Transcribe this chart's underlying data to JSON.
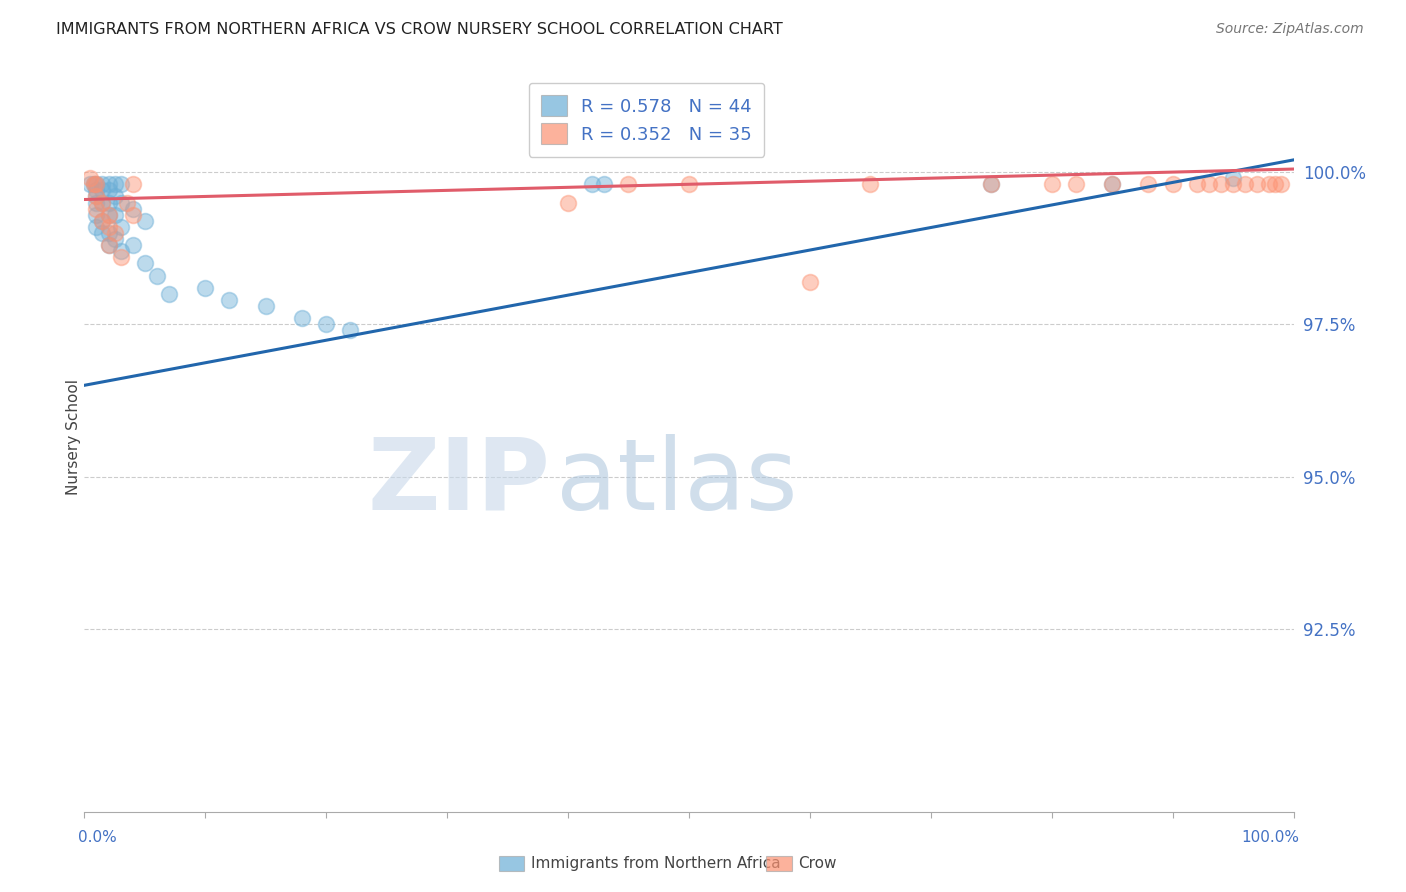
{
  "title": "IMMIGRANTS FROM NORTHERN AFRICA VS CROW NURSERY SCHOOL CORRELATION CHART",
  "source": "Source: ZipAtlas.com",
  "ylabel": "Nursery School",
  "yticks": [
    100.0,
    97.5,
    95.0,
    92.5
  ],
  "ytick_labels": [
    "100.0%",
    "97.5%",
    "95.0%",
    "92.5%"
  ],
  "xlim": [
    0.0,
    1.0
  ],
  "ylim": [
    89.5,
    101.8
  ],
  "legend_r1": "R = 0.578   N = 44",
  "legend_r2": "R = 0.352   N = 35",
  "legend_label_bottom_left": "Immigrants from Northern Africa",
  "legend_label_bottom_right": "Crow",
  "blue_scatter_x": [
    0.005,
    0.008,
    0.01,
    0.01,
    0.01,
    0.01,
    0.01,
    0.01,
    0.015,
    0.015,
    0.015,
    0.015,
    0.015,
    0.02,
    0.02,
    0.02,
    0.02,
    0.02,
    0.02,
    0.025,
    0.025,
    0.025,
    0.025,
    0.03,
    0.03,
    0.03,
    0.03,
    0.04,
    0.04,
    0.05,
    0.05,
    0.06,
    0.07,
    0.1,
    0.12,
    0.15,
    0.18,
    0.2,
    0.22,
    0.42,
    0.43,
    0.75,
    0.85,
    0.95
  ],
  "blue_scatter_y": [
    99.8,
    99.8,
    99.8,
    99.7,
    99.6,
    99.5,
    99.3,
    99.1,
    99.8,
    99.7,
    99.5,
    99.2,
    99.0,
    99.8,
    99.7,
    99.5,
    99.3,
    99.0,
    98.8,
    99.8,
    99.6,
    99.3,
    98.9,
    99.8,
    99.5,
    99.1,
    98.7,
    99.4,
    98.8,
    99.2,
    98.5,
    98.3,
    98.0,
    98.1,
    97.9,
    97.8,
    97.6,
    97.5,
    97.4,
    99.8,
    99.8,
    99.8,
    99.8,
    99.9
  ],
  "pink_scatter_x": [
    0.005,
    0.008,
    0.01,
    0.01,
    0.01,
    0.015,
    0.015,
    0.02,
    0.02,
    0.02,
    0.025,
    0.03,
    0.035,
    0.04,
    0.04,
    0.4,
    0.75,
    0.8,
    0.82,
    0.85,
    0.88,
    0.9,
    0.92,
    0.93,
    0.94,
    0.95,
    0.96,
    0.97,
    0.98,
    0.985,
    0.99,
    0.6,
    0.45,
    0.5,
    0.65
  ],
  "pink_scatter_y": [
    99.9,
    99.8,
    99.8,
    99.6,
    99.4,
    99.5,
    99.2,
    99.3,
    99.1,
    98.8,
    99.0,
    98.6,
    99.5,
    99.8,
    99.3,
    99.5,
    99.8,
    99.8,
    99.8,
    99.8,
    99.8,
    99.8,
    99.8,
    99.8,
    99.8,
    99.8,
    99.8,
    99.8,
    99.8,
    99.8,
    99.8,
    98.2,
    99.8,
    99.8,
    99.8
  ],
  "blue_line_x": [
    0.0,
    1.0
  ],
  "blue_line_y": [
    96.5,
    100.2
  ],
  "pink_line_x": [
    0.0,
    1.0
  ],
  "pink_line_y": [
    99.55,
    100.05
  ],
  "blue_color": "#6baed6",
  "pink_color": "#fc9272",
  "blue_line_color": "#2166ac",
  "pink_line_color": "#e05c6a",
  "background_color": "#ffffff"
}
